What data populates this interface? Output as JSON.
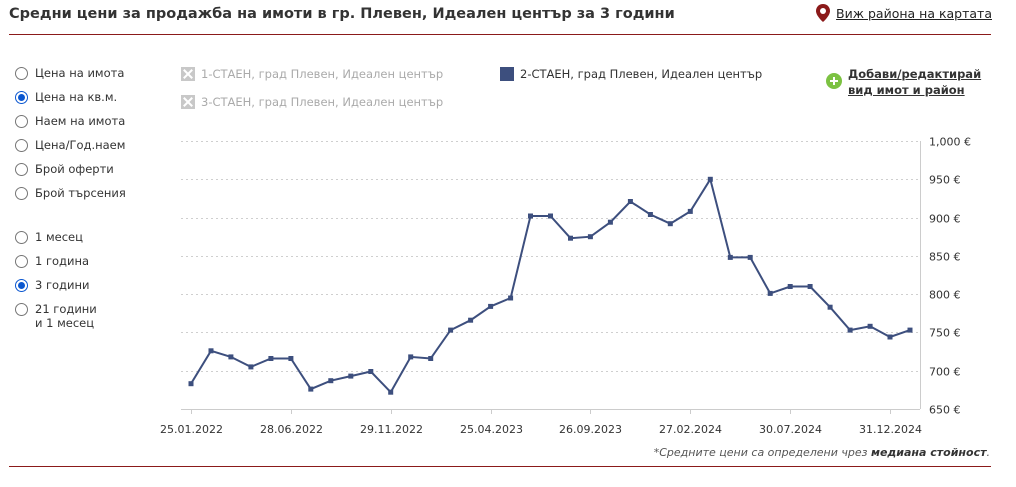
{
  "header": {
    "title": "Средни цени за продажба на имоти в гр. Плевен, Идеален център за 3 години",
    "map_link": "Виж района на картата"
  },
  "price_types": [
    {
      "label": "Цена на имота",
      "checked": false
    },
    {
      "label": "Цена на кв.м.",
      "checked": true
    },
    {
      "label": "Наем на имота",
      "checked": false
    },
    {
      "label": "Цена/Год.наем",
      "checked": false
    },
    {
      "label": "Брой оферти",
      "checked": false
    },
    {
      "label": "Брой търсения",
      "checked": false
    }
  ],
  "periods": [
    {
      "label": "1 месец",
      "checked": false
    },
    {
      "label": "1 година",
      "checked": false
    },
    {
      "label": "3 години",
      "checked": true
    },
    {
      "label": "21 години",
      "label2": "и 1 месец",
      "checked": false
    }
  ],
  "legend": [
    {
      "label": "1-СТАЕН, град Плевен, Идеален център",
      "active": false
    },
    {
      "label": "3-СТАЕН, град Плевен, Идеален център",
      "active": false
    },
    {
      "label": "2-СТАЕН, град Плевен, Идеален център",
      "active": true,
      "color": "#3d4f7e"
    }
  ],
  "add_link": {
    "line1": "Добави/редактирай",
    "line2": "вид имот и район"
  },
  "footnote": {
    "prefix": "*Средните цени са определени чрез ",
    "bold": "медиана стойност",
    "suffix": "."
  },
  "chart_data": {
    "type": "line",
    "x_tick_labels": [
      "25.01.2022",
      "28.06.2022",
      "29.11.2022",
      "25.04.2023",
      "26.09.2023",
      "27.02.2024",
      "30.07.2024",
      "31.12.2024"
    ],
    "y_ticks": [
      650,
      700,
      750,
      800,
      850,
      900,
      950,
      1000
    ],
    "y_tick_labels": [
      "650 €",
      "700 €",
      "750 €",
      "800 €",
      "850 €",
      "900 €",
      "950 €",
      "1,000 €"
    ],
    "ylim": [
      650,
      1000
    ],
    "grid": true,
    "series": [
      {
        "name": "2-СТАЕН, град Плевен, Идеален център",
        "color": "#3d4f7e",
        "values": [
          683,
          726,
          718,
          705,
          716,
          716,
          676,
          687,
          693,
          699,
          672,
          718,
          716,
          753,
          766,
          784,
          795,
          902,
          902,
          873,
          875,
          894,
          921,
          904,
          892,
          908,
          950,
          848,
          848,
          801,
          810,
          810,
          783,
          753,
          758,
          744,
          753
        ]
      }
    ]
  }
}
